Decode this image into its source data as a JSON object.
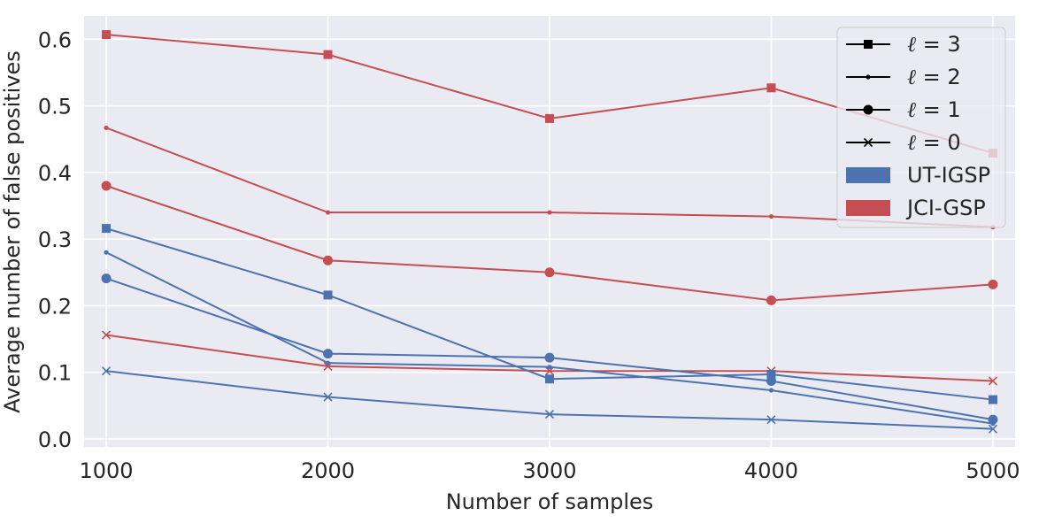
{
  "chart_data": {
    "type": "line",
    "title": "",
    "xlabel": "Number of samples",
    "ylabel": "Average number of false positives",
    "x": [
      1000,
      2000,
      3000,
      4000,
      5000
    ],
    "xlim": [
      900,
      5100
    ],
    "ylim": [
      -0.012,
      0.635
    ],
    "xticks": [
      1000,
      2000,
      3000,
      4000,
      5000
    ],
    "xtick_labels": [
      "1000",
      "2000",
      "3000",
      "4000",
      "5000"
    ],
    "yticks": [
      0.0,
      0.1,
      0.2,
      0.3,
      0.4,
      0.5,
      0.6
    ],
    "ytick_labels": [
      "0.0",
      "0.1",
      "0.2",
      "0.3",
      "0.4",
      "0.5",
      "0.6"
    ],
    "grid": true,
    "legend_position": "top-right",
    "colors": {
      "UT-IGSP": "#4c72b0",
      "JCI-GSP": "#c44e52",
      "background": "#eaeaf2",
      "grid": "#ffffff"
    },
    "series": [
      {
        "method": "JCI-GSP",
        "ell": 3,
        "marker": "square",
        "values": [
          0.607,
          0.577,
          0.481,
          0.527,
          0.429
        ]
      },
      {
        "method": "JCI-GSP",
        "ell": 2,
        "marker": "point",
        "values": [
          0.467,
          0.34,
          0.34,
          0.334,
          0.318
        ]
      },
      {
        "method": "JCI-GSP",
        "ell": 1,
        "marker": "circle",
        "values": [
          0.38,
          0.268,
          0.25,
          0.208,
          0.232
        ]
      },
      {
        "method": "JCI-GSP",
        "ell": 0,
        "marker": "x",
        "values": [
          0.156,
          0.109,
          0.102,
          0.102,
          0.087
        ]
      },
      {
        "method": "UT-IGSP",
        "ell": 3,
        "marker": "square",
        "values": [
          0.316,
          0.216,
          0.09,
          0.097,
          0.059
        ]
      },
      {
        "method": "UT-IGSP",
        "ell": 2,
        "marker": "point",
        "values": [
          0.28,
          0.114,
          0.108,
          0.073,
          0.023
        ]
      },
      {
        "method": "UT-IGSP",
        "ell": 1,
        "marker": "circle",
        "values": [
          0.241,
          0.128,
          0.122,
          0.087,
          0.029
        ]
      },
      {
        "method": "UT-IGSP",
        "ell": 0,
        "marker": "x",
        "values": [
          0.102,
          0.063,
          0.037,
          0.029,
          0.015
        ]
      }
    ],
    "legend": [
      {
        "kind": "line",
        "marker": "square",
        "label_sym": "ℓ",
        "label_rest": " = 3"
      },
      {
        "kind": "line",
        "marker": "point",
        "label_sym": "ℓ",
        "label_rest": " = 2"
      },
      {
        "kind": "line",
        "marker": "circle",
        "label_sym": "ℓ",
        "label_rest": " = 1"
      },
      {
        "kind": "line",
        "marker": "x",
        "label_sym": "ℓ",
        "label_rest": " = 0"
      },
      {
        "kind": "patch",
        "color_key": "UT-IGSP",
        "label_sym": "",
        "label_rest": "UT-IGSP"
      },
      {
        "kind": "patch",
        "color_key": "JCI-GSP",
        "label_sym": "",
        "label_rest": "JCI-GSP"
      }
    ]
  }
}
